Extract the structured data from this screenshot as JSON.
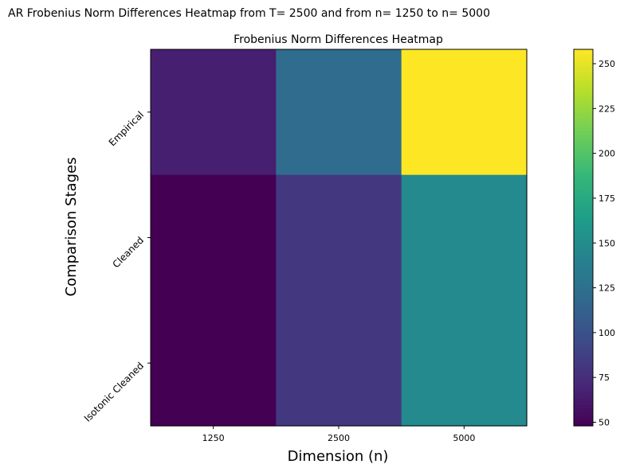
{
  "figure": {
    "suptitle": "AR Frobenius Norm Differences Heatmap from T= 2500 and from n= 1250 to n= 5000"
  },
  "chart_data": {
    "type": "heatmap",
    "title": "Frobenius Norm Differences Heatmap",
    "xlabel": "Dimension (n)",
    "ylabel": "Comparison Stages",
    "x_categories": [
      "1250",
      "2500",
      "5000"
    ],
    "y_categories": [
      "Empirical",
      "Cleaned",
      "Isotonic Cleaned"
    ],
    "values": [
      [
        66,
        122,
        258
      ],
      [
        48,
        82,
        148
      ],
      [
        48,
        82,
        148
      ]
    ],
    "colormap": "viridis",
    "colorbar": {
      "vmin": 48,
      "vmax": 258,
      "ticks": [
        50,
        75,
        100,
        125,
        150,
        175,
        200,
        225,
        250
      ],
      "tick_labels": [
        "50",
        "75",
        "100",
        "125",
        "150",
        "175",
        "200",
        "225",
        "250"
      ]
    },
    "grid": false
  }
}
